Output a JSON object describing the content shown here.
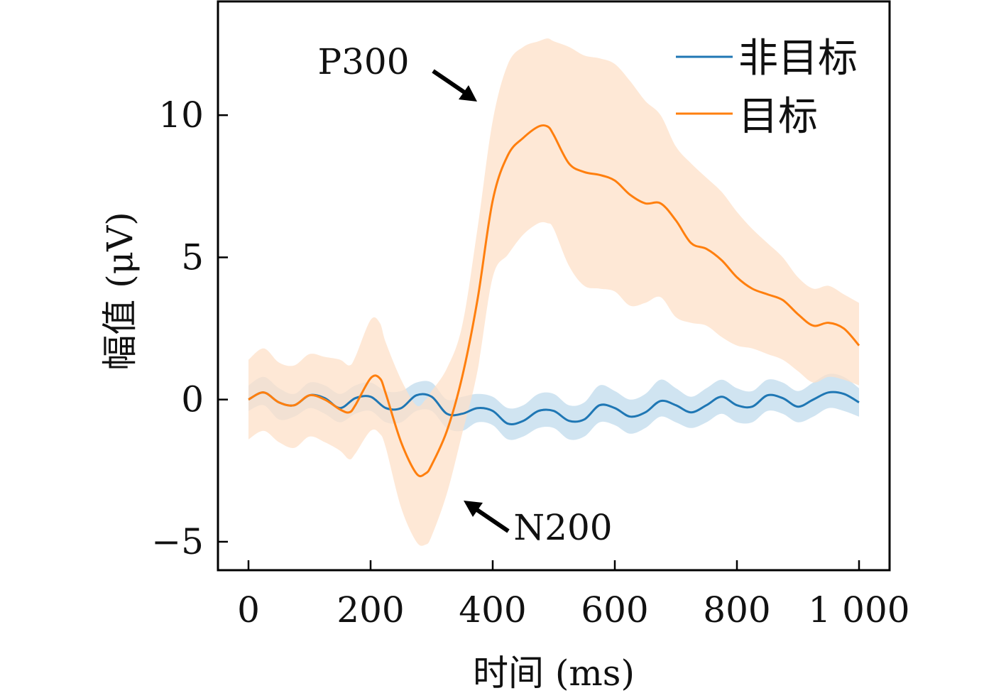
{
  "chart_data": {
    "type": "line",
    "xlabel": "时间 (ms)",
    "ylabel": "幅值 (μV)",
    "xlim": [
      -50,
      1050
    ],
    "ylim": [
      -6,
      14
    ],
    "grid": false,
    "legend_position": "top-right",
    "x_ticks": [
      0,
      200,
      400,
      600,
      800,
      1000
    ],
    "x_tick_labels": [
      "0",
      "200",
      "400",
      "600",
      "800",
      "1 000"
    ],
    "y_ticks": [
      -5,
      0,
      5,
      10
    ],
    "y_tick_labels": [
      "−5",
      "0",
      "5",
      "10"
    ],
    "annotations": [
      {
        "text": "P300",
        "arrow_to": [
          375,
          10.5
        ]
      },
      {
        "text": "N200",
        "arrow_to": [
          355,
          -3.6
        ]
      }
    ],
    "series": [
      {
        "name": "非目标",
        "color": "#1f77b4",
        "band_color": "#aacde6",
        "x": [
          0,
          25,
          50,
          75,
          100,
          125,
          150,
          175,
          200,
          225,
          250,
          275,
          300,
          325,
          350,
          375,
          400,
          425,
          450,
          475,
          500,
          525,
          550,
          575,
          600,
          625,
          650,
          675,
          700,
          725,
          750,
          775,
          800,
          825,
          850,
          875,
          900,
          925,
          950,
          975,
          1000
        ],
        "y": [
          0.0,
          0.25,
          -0.1,
          -0.2,
          0.15,
          0.05,
          -0.3,
          0.05,
          0.1,
          -0.3,
          -0.3,
          0.15,
          0.1,
          -0.5,
          -0.5,
          -0.3,
          -0.4,
          -0.85,
          -0.75,
          -0.4,
          -0.4,
          -0.75,
          -0.7,
          -0.2,
          -0.3,
          -0.6,
          -0.45,
          -0.05,
          -0.2,
          -0.45,
          -0.2,
          0.1,
          -0.2,
          -0.25,
          0.15,
          0.05,
          -0.25,
          0.0,
          0.25,
          0.2,
          -0.1
        ],
        "lower": [
          -0.4,
          -0.2,
          -0.7,
          -0.6,
          -0.3,
          -0.5,
          -0.8,
          -0.5,
          -0.4,
          -0.8,
          -0.8,
          -0.4,
          -0.4,
          -1.0,
          -1.1,
          -0.8,
          -0.9,
          -1.4,
          -1.3,
          -1.0,
          -1.0,
          -1.4,
          -1.3,
          -0.8,
          -0.9,
          -1.2,
          -1.0,
          -0.6,
          -0.8,
          -1.0,
          -0.8,
          -0.5,
          -0.8,
          -0.8,
          -0.4,
          -0.5,
          -0.8,
          -0.6,
          -0.3,
          -0.4,
          -0.6
        ],
        "upper": [
          0.5,
          0.8,
          0.4,
          0.2,
          0.6,
          0.5,
          0.2,
          0.5,
          0.6,
          0.3,
          0.3,
          0.6,
          0.6,
          0.0,
          0.1,
          0.2,
          0.1,
          -0.3,
          -0.2,
          0.2,
          0.2,
          -0.2,
          -0.1,
          0.5,
          0.3,
          0.0,
          0.2,
          0.7,
          0.4,
          0.1,
          0.4,
          0.7,
          0.4,
          0.3,
          0.7,
          0.6,
          0.3,
          0.6,
          0.9,
          0.8,
          0.4
        ]
      },
      {
        "name": "目标",
        "color": "#ff7f0e",
        "band_color": "#fee0c8",
        "x": [
          0,
          25,
          50,
          75,
          100,
          125,
          150,
          165,
          175,
          200,
          215,
          225,
          250,
          275,
          290,
          300,
          325,
          350,
          375,
          400,
          425,
          450,
          475,
          490,
          500,
          525,
          550,
          575,
          600,
          625,
          650,
          675,
          700,
          725,
          750,
          775,
          800,
          825,
          850,
          875,
          900,
          925,
          950,
          975,
          1000
        ],
        "y": [
          0.0,
          0.25,
          -0.1,
          -0.2,
          0.15,
          0.0,
          -0.35,
          -0.45,
          -0.2,
          0.75,
          0.75,
          0.2,
          -1.5,
          -2.6,
          -2.6,
          -2.3,
          -1.1,
          0.8,
          3.5,
          7.0,
          8.6,
          9.2,
          9.6,
          9.6,
          9.3,
          8.3,
          8.0,
          7.9,
          7.7,
          7.2,
          6.9,
          6.9,
          6.3,
          5.5,
          5.3,
          4.9,
          4.3,
          3.9,
          3.7,
          3.5,
          3.0,
          2.6,
          2.7,
          2.5,
          1.9
        ],
        "lower": [
          -1.4,
          -1.1,
          -1.5,
          -1.7,
          -1.3,
          -1.5,
          -1.8,
          -2.1,
          -1.9,
          -1.1,
          -1.2,
          -1.7,
          -3.8,
          -5.0,
          -5.1,
          -4.8,
          -3.3,
          -1.2,
          1.0,
          4.3,
          5.1,
          5.8,
          6.2,
          6.2,
          6.0,
          4.7,
          4.0,
          3.9,
          3.8,
          3.3,
          3.4,
          3.6,
          2.9,
          2.7,
          2.6,
          2.2,
          1.9,
          1.8,
          1.6,
          1.4,
          1.0,
          0.6,
          0.8,
          0.7,
          0.5
        ],
        "upper": [
          1.4,
          1.8,
          1.3,
          1.2,
          1.6,
          1.5,
          1.4,
          1.2,
          1.5,
          2.8,
          2.7,
          2.0,
          0.7,
          -0.2,
          0.0,
          0.3,
          1.1,
          2.6,
          6.0,
          9.8,
          11.8,
          12.4,
          12.6,
          12.7,
          12.6,
          12.4,
          12.1,
          12.0,
          11.8,
          11.2,
          10.5,
          10.0,
          8.9,
          8.3,
          7.8,
          7.3,
          6.6,
          6.0,
          5.5,
          5.0,
          4.3,
          3.9,
          4.0,
          3.7,
          3.4
        ]
      }
    ]
  }
}
